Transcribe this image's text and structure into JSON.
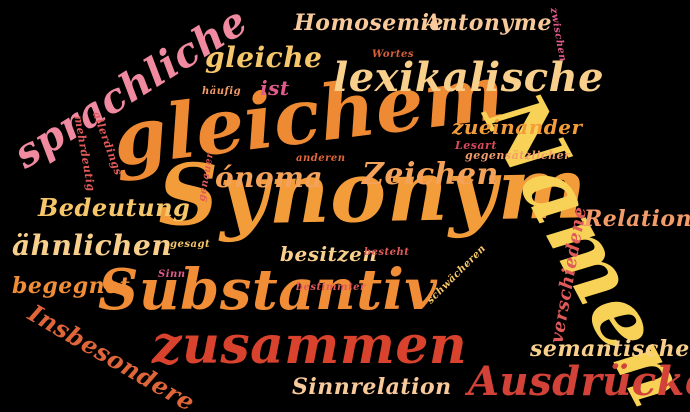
{
  "words": [
    {
      "text": "Synonym",
      "color": "#f39c3a"
    },
    {
      "text": "gleichem",
      "color": "#ee8a33"
    },
    {
      "text": "Namen",
      "color": "#f8d257"
    },
    {
      "text": "Substantiv",
      "color": "#f08d36"
    },
    {
      "text": "zusammen",
      "color": "#d9422d"
    },
    {
      "text": "lexikalische",
      "color": "#f9cf8c"
    },
    {
      "text": "sprachliche",
      "color": "#f08aa0"
    },
    {
      "text": "Ausdrücke",
      "color": "#d34238"
    },
    {
      "text": "ónoma",
      "color": "#f4a25a"
    },
    {
      "text": "Zeichen",
      "color": "#f4a25a"
    },
    {
      "text": "gleiche",
      "color": "#f6c66a"
    },
    {
      "text": "Homosemie",
      "color": "#f8c99a"
    },
    {
      "text": "Antonyme",
      "color": "#f8c99a"
    },
    {
      "text": "Bedeutung",
      "color": "#f6c66a"
    },
    {
      "text": "ähnlichen",
      "color": "#f9cf8c"
    },
    {
      "text": "begegnet",
      "color": "#f08d36"
    },
    {
      "text": "Insbesondere",
      "color": "#e0663a"
    },
    {
      "text": "Sinnrelation",
      "color": "#f8c99a"
    },
    {
      "text": "semantische",
      "color": "#f9cf8c"
    },
    {
      "text": "Relation",
      "color": "#f39c6a"
    },
    {
      "text": "zueinander",
      "color": "#f39c3a"
    },
    {
      "text": "besitzen",
      "color": "#f9cf8c"
    },
    {
      "text": "verschiedene",
      "color": "#e05a5a"
    },
    {
      "text": "ist",
      "color": "#e05a8a"
    },
    {
      "text": "Wortes",
      "color": "#d9603a"
    },
    {
      "text": "zwischen",
      "color": "#e05a8a"
    },
    {
      "text": "häufig",
      "color": "#f39c6a"
    },
    {
      "text": "Lesart",
      "color": "#d94a5a"
    },
    {
      "text": "gegensätzlicher",
      "color": "#f39c6a"
    },
    {
      "text": "anderen",
      "color": "#e0663a"
    },
    {
      "text": "genauer",
      "color": "#e05a5a"
    },
    {
      "text": "allerdings",
      "color": "#e05a5a"
    },
    {
      "text": "mehrdeutig",
      "color": "#e05a5a"
    },
    {
      "text": "gesagt",
      "color": "#f6c66a"
    },
    {
      "text": "Sinn",
      "color": "#e05a8a"
    },
    {
      "text": "bestimmter",
      "color": "#e05a5a"
    },
    {
      "text": "besteht",
      "color": "#e05a5a"
    },
    {
      "text": "schwächeren",
      "color": "#f6c66a"
    }
  ]
}
